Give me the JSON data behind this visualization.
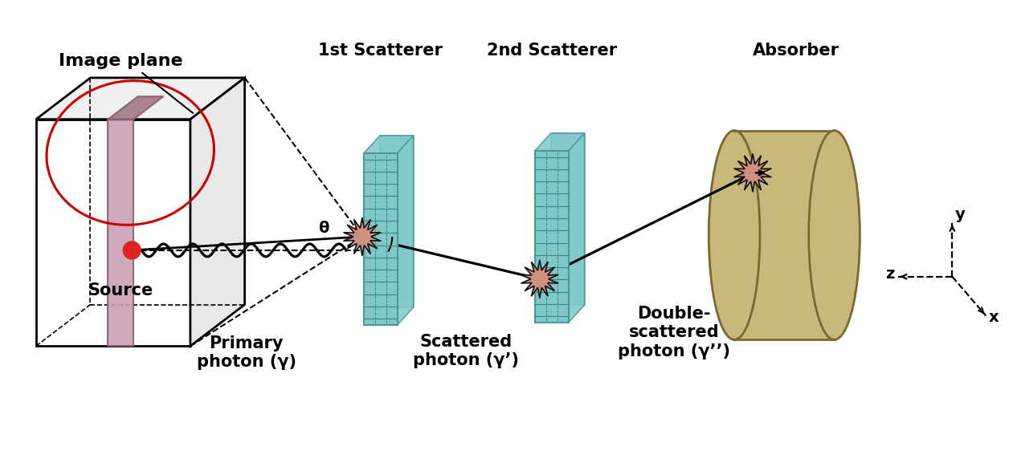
{
  "bg_color": "#ffffff",
  "box_edge_color": "#000000",
  "image_plane_color": "#c8a0b4",
  "image_plane_edge": "#8a6070",
  "ellipse_color": "#cc0000",
  "source_color": "#dd2222",
  "scatterer_face_color": "#7ec8c8",
  "scatterer_edge_color": "#4a9898",
  "scatterer_stripe_color": "#5aacac",
  "absorber_face_color": "#c8b87a",
  "absorber_edge_color": "#7a6830",
  "burst_color": "#d09080",
  "burst_edge_color": "#111111",
  "labels": {
    "image_plane": "Image plane",
    "source": "Source",
    "primary_photon": "Primary\nphoton (γ)",
    "1st_scatterer": "1st Scatterer",
    "scattered_photon": "Scattered\nphoton (γ’)",
    "2nd_scatterer": "2nd Scatterer",
    "double_scattered": "Double-\nscattered\nphoton (γ’’)",
    "absorber": "Absorber",
    "theta": "θ",
    "y_axis": "y",
    "z_axis": "z",
    "x_axis": "x"
  }
}
